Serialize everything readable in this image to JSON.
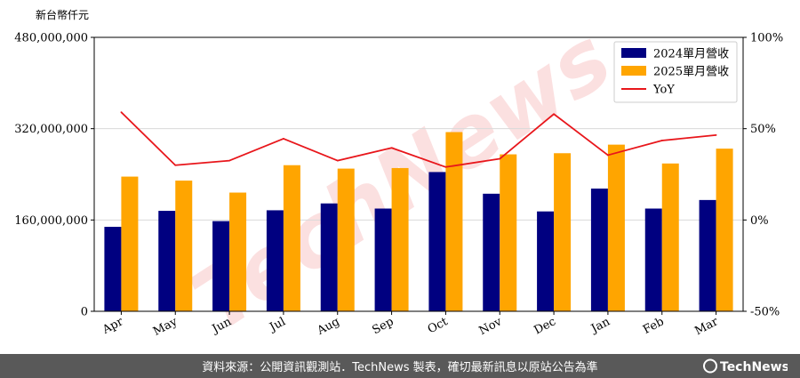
{
  "chart_data": {
    "type": "bar",
    "unit_label": "新台幣仟元",
    "categories": [
      "Apr",
      "May",
      "Jun",
      "Jul",
      "Aug",
      "Sep",
      "Oct",
      "Nov",
      "Dec",
      "Jan",
      "Feb",
      "Mar"
    ],
    "series": [
      {
        "name": "2024單月營收",
        "kind": "bar",
        "axis": "left",
        "color": "#000080",
        "values": [
          148000000,
          176000000,
          158000000,
          177000000,
          189000000,
          180000000,
          244000000,
          206000000,
          175000000,
          215000000,
          180000000,
          195000000
        ]
      },
      {
        "name": "2025單月營收",
        "kind": "bar",
        "axis": "left",
        "color": "#FFA500",
        "values": [
          236000000,
          229000000,
          208000000,
          256000000,
          250000000,
          251000000,
          314000000,
          275000000,
          277000000,
          292000000,
          259000000,
          285000000
        ]
      },
      {
        "name": "YoY",
        "kind": "line",
        "axis": "right",
        "color": "#E8161B",
        "values": [
          59,
          30,
          32.5,
          44.5,
          32.5,
          39.5,
          29,
          33.5,
          58,
          35.5,
          43.5,
          46.5
        ]
      }
    ],
    "y_left": {
      "min": 0,
      "max": 480000000,
      "ticks": [
        0,
        160000000,
        320000000,
        480000000
      ],
      "tick_labels": [
        "0",
        "160,000,000",
        "320,000,000",
        "480,000,000"
      ]
    },
    "y_right": {
      "min": -50,
      "max": 100,
      "ticks": [
        -50,
        0,
        50,
        100
      ],
      "tick_labels": [
        "-50%",
        "0%",
        "50%",
        "100%"
      ]
    },
    "grid": "horizontal",
    "legend_position": "top-right"
  },
  "watermark": "TechNews",
  "footer": {
    "source_text": "資料來源：公開資訊觀測站．TechNews 製表，確切最新訊息以原站公告為準",
    "logo_text": "TechNews"
  }
}
